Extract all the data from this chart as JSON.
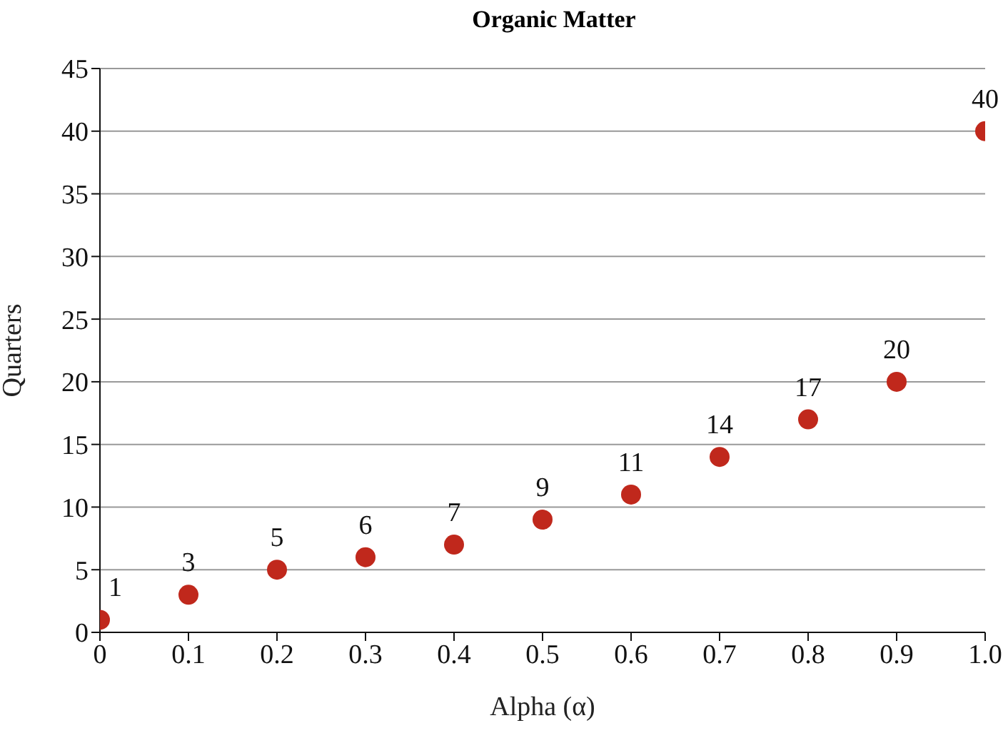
{
  "chart_data": {
    "type": "scatter",
    "title": "Organic Matter",
    "xlabel": "Alpha (α)",
    "ylabel": "Quarters",
    "x": [
      0,
      0.1,
      0.2,
      0.3,
      0.4,
      0.5,
      0.6,
      0.7,
      0.8,
      0.9,
      1.0
    ],
    "series": [
      {
        "color": "#c0281c",
        "values": [
          1,
          3,
          5,
          6,
          7,
          9,
          11,
          14,
          17,
          20,
          40
        ]
      }
    ],
    "xlim": [
      0,
      1
    ],
    "xticks": [
      0,
      0.1,
      0.2,
      0.3,
      0.4,
      0.5,
      0.6,
      0.7,
      0.8,
      0.9,
      {
        "value": 1,
        "label": "1.0"
      }
    ],
    "ylim": [
      0,
      45
    ],
    "yticks": [
      0,
      5,
      10,
      15,
      20,
      25,
      30,
      35,
      40,
      45
    ],
    "grid": "y",
    "marker": "circle",
    "data_labels": true,
    "legend": false
  }
}
